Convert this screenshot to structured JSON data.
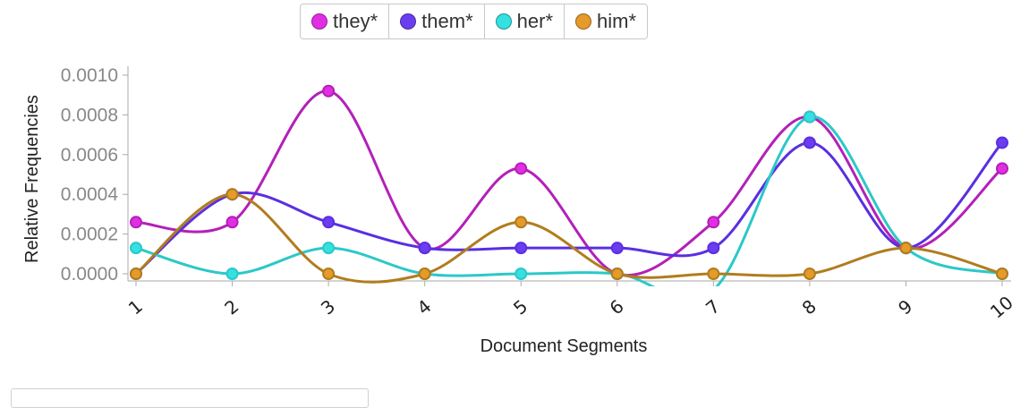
{
  "chart_data": {
    "type": "line",
    "categories": [
      "1",
      "2",
      "3",
      "4",
      "5",
      "6",
      "7",
      "8",
      "9",
      "10"
    ],
    "series": [
      {
        "name": "they*",
        "color": "#b320b8",
        "marker": "#e22ee2",
        "values": [
          0.00026,
          0.00026,
          0.00092,
          0.00013,
          0.00053,
          0.0,
          0.00026,
          0.00079,
          0.00013,
          0.00053
        ]
      },
      {
        "name": "them*",
        "color": "#5a2fe0",
        "marker": "#6a3ef0",
        "values": [
          0.0,
          0.0004,
          0.00026,
          0.00013,
          0.00013,
          0.00013,
          0.00013,
          0.00066,
          0.00013,
          0.00066
        ]
      },
      {
        "name": "her*",
        "color": "#2cc8c8",
        "marker": "#35e0e0",
        "values": [
          0.00013,
          0.0,
          0.00013,
          0.0,
          0.0,
          0.0,
          -8e-05,
          0.00079,
          0.00013,
          0.0
        ]
      },
      {
        "name": "him*",
        "color": "#b07d1e",
        "marker": "#e59a2a",
        "values": [
          0.0,
          0.0004,
          0.0,
          0.0,
          0.00026,
          0.0,
          0.0,
          0.0,
          0.00013,
          0.0
        ]
      }
    ],
    "ylim": [
      0,
      0.001
    ],
    "yticks": [
      "0.0000",
      "0.0002",
      "0.0004",
      "0.0006",
      "0.0008",
      "0.0010"
    ],
    "xlabel": "Document Segments",
    "ylabel": "Relative Frequencies",
    "legend_position": "top-center",
    "grid": false
  }
}
